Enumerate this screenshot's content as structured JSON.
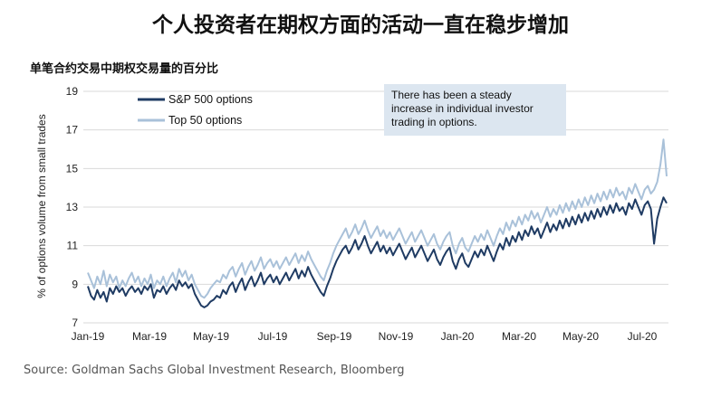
{
  "title": "个人投资者在期权方面的活动一直在稳步增加",
  "subtitle": "单笔合约交易中期权交易量的百分比",
  "source": "Source: Goldman Sachs Global Investment Research, Bloomberg",
  "annotation": [
    "There has been a steady",
    "increase in individual investor",
    "trading in options."
  ],
  "colors": {
    "sp500": "#1f3b63",
    "top50": "#a9c1d9",
    "annot_bg": "#dce6f0",
    "grid": "#d9d9d9"
  },
  "chart_data": {
    "type": "line",
    "title": "个人投资者在期权方面的活动一直在稳步增加",
    "subtitle": "单笔合约交易中期权交易量的百分比",
    "ylabel": "% of options volume from small trades",
    "ylim": [
      7,
      19
    ],
    "yticks": [
      7,
      9,
      11,
      13,
      15,
      17,
      19
    ],
    "xticks": [
      "Jan-19",
      "Mar-19",
      "May-19",
      "Jul-19",
      "Sep-19",
      "Nov-19",
      "Jan-20",
      "Mar-20",
      "May-20",
      "Jul-20"
    ],
    "grid": true,
    "legend": "top-left",
    "series": [
      {
        "name": "S&P 500 options",
        "values": [
          8.9,
          8.4,
          8.2,
          8.7,
          8.3,
          8.6,
          8.1,
          8.8,
          8.5,
          8.9,
          8.6,
          8.8,
          8.4,
          8.7,
          8.9,
          8.6,
          8.8,
          8.5,
          8.9,
          8.7,
          9.0,
          8.3,
          8.7,
          8.6,
          8.9,
          8.5,
          8.8,
          9.0,
          8.7,
          9.2,
          8.9,
          9.1,
          8.8,
          9.0,
          8.5,
          8.2,
          7.9,
          7.8,
          7.9,
          8.1,
          8.2,
          8.4,
          8.3,
          8.7,
          8.5,
          8.9,
          9.1,
          8.6,
          9.0,
          9.3,
          8.7,
          9.1,
          9.4,
          8.9,
          9.2,
          9.6,
          9.0,
          9.3,
          9.5,
          9.1,
          9.4,
          9.0,
          9.3,
          9.6,
          9.2,
          9.5,
          9.8,
          9.3,
          9.7,
          9.4,
          9.9,
          9.5,
          9.2,
          8.9,
          8.6,
          8.4,
          8.9,
          9.3,
          9.8,
          10.2,
          10.5,
          10.8,
          11.0,
          10.6,
          10.9,
          11.3,
          10.8,
          11.1,
          11.5,
          11.0,
          10.6,
          10.9,
          11.2,
          10.7,
          11.0,
          10.6,
          10.9,
          10.5,
          10.8,
          11.1,
          10.7,
          10.3,
          10.6,
          10.9,
          10.4,
          10.7,
          11.0,
          10.6,
          10.2,
          10.5,
          10.8,
          10.3,
          10.0,
          10.4,
          10.7,
          10.9,
          10.2,
          9.8,
          10.3,
          10.6,
          10.1,
          9.9,
          10.3,
          10.7,
          10.4,
          10.8,
          10.5,
          11.0,
          10.6,
          10.2,
          10.7,
          11.1,
          10.8,
          11.4,
          11.0,
          11.5,
          11.2,
          11.7,
          11.3,
          11.8,
          11.5,
          12.0,
          11.6,
          11.9,
          11.4,
          11.8,
          12.2,
          11.7,
          12.1,
          11.8,
          12.3,
          11.9,
          12.4,
          12.0,
          12.5,
          12.1,
          12.6,
          12.2,
          12.7,
          12.3,
          12.8,
          12.4,
          12.9,
          12.5,
          13.0,
          12.6,
          13.1,
          12.7,
          13.2,
          12.8,
          13.0,
          12.6,
          13.2,
          12.9,
          13.4,
          13.0,
          12.6,
          13.1,
          13.3,
          12.9,
          11.1,
          12.4,
          13.0,
          13.5,
          13.2
        ]
      },
      {
        "name": "Top 50 options",
        "values": [
          9.6,
          9.2,
          8.8,
          9.4,
          9.0,
          9.7,
          8.9,
          9.5,
          9.1,
          9.4,
          8.8,
          9.2,
          8.9,
          9.3,
          9.6,
          9.1,
          9.4,
          8.9,
          9.3,
          9.0,
          9.5,
          8.8,
          9.2,
          9.0,
          9.4,
          8.9,
          9.3,
          9.6,
          9.1,
          9.8,
          9.4,
          9.7,
          9.2,
          9.5,
          9.0,
          8.7,
          8.4,
          8.3,
          8.5,
          8.8,
          9.0,
          9.2,
          9.1,
          9.5,
          9.3,
          9.7,
          9.9,
          9.4,
          9.8,
          10.1,
          9.5,
          9.9,
          10.2,
          9.7,
          10.0,
          10.4,
          9.8,
          10.1,
          10.3,
          9.9,
          10.2,
          9.8,
          10.1,
          10.4,
          10.0,
          10.3,
          10.6,
          10.1,
          10.5,
          10.2,
          10.7,
          10.3,
          10.0,
          9.7,
          9.4,
          9.2,
          9.7,
          10.1,
          10.6,
          11.0,
          11.3,
          11.6,
          11.9,
          11.4,
          11.7,
          12.1,
          11.6,
          11.9,
          12.3,
          11.8,
          11.4,
          11.7,
          12.0,
          11.5,
          11.8,
          11.4,
          11.7,
          11.3,
          11.6,
          11.9,
          11.5,
          11.1,
          11.4,
          11.7,
          11.2,
          11.5,
          11.8,
          11.4,
          11.0,
          11.3,
          11.6,
          11.1,
          10.8,
          11.2,
          11.5,
          11.7,
          11.0,
          10.6,
          11.1,
          11.4,
          10.9,
          10.7,
          11.1,
          11.5,
          11.2,
          11.6,
          11.3,
          11.8,
          11.4,
          11.0,
          11.5,
          11.9,
          11.6,
          12.2,
          11.8,
          12.3,
          12.0,
          12.5,
          12.1,
          12.6,
          12.3,
          12.8,
          12.4,
          12.7,
          12.2,
          12.6,
          13.0,
          12.5,
          12.9,
          12.6,
          13.1,
          12.7,
          13.2,
          12.8,
          13.3,
          12.9,
          13.4,
          13.0,
          13.5,
          13.1,
          13.6,
          13.2,
          13.7,
          13.3,
          13.8,
          13.4,
          13.9,
          13.5,
          14.0,
          13.6,
          13.8,
          13.4,
          14.0,
          13.7,
          14.2,
          13.8,
          13.4,
          13.9,
          14.1,
          13.7,
          13.9,
          14.3,
          15.2,
          16.5,
          14.6
        ]
      }
    ]
  }
}
